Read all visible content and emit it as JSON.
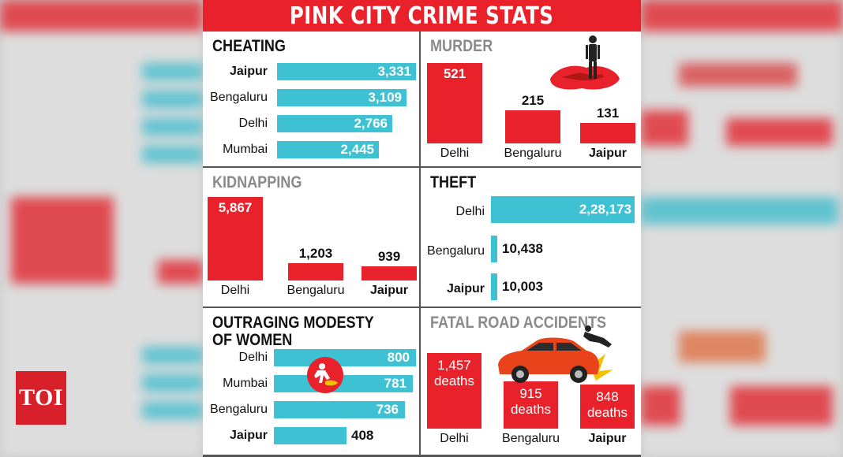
{
  "logo": {
    "text": "TOI"
  },
  "title": "PINK CITY CRIME STATS",
  "colors": {
    "red": "#e8212a",
    "cyan": "#3ec1d3"
  },
  "chart_data": [
    {
      "key": "cheating",
      "type": "bar",
      "orientation": "horizontal",
      "title": "CHEATING",
      "categories": [
        "Jaipur",
        "Bengaluru",
        "Delhi",
        "Mumbai"
      ],
      "values": [
        3331,
        3109,
        2766,
        2445
      ],
      "value_labels": [
        "3,331",
        "3,109",
        "2,766",
        "2,445"
      ],
      "highlight": "Jaipur"
    },
    {
      "key": "murder",
      "type": "bar",
      "orientation": "vertical",
      "title": "MURDER",
      "categories": [
        "Delhi",
        "Bengaluru",
        "Jaipur"
      ],
      "values": [
        521,
        215,
        131
      ],
      "value_labels": [
        "521",
        "215",
        "131"
      ],
      "highlight": "Jaipur"
    },
    {
      "key": "kidnapping",
      "type": "bar",
      "orientation": "vertical",
      "title": "KIDNAPPING",
      "categories": [
        "Delhi",
        "Bengaluru",
        "Jaipur"
      ],
      "values": [
        5867,
        1203,
        939
      ],
      "value_labels": [
        "5,867",
        "1,203",
        "939"
      ],
      "highlight": "Jaipur"
    },
    {
      "key": "theft",
      "type": "bar",
      "orientation": "horizontal",
      "title": "THEFT",
      "categories": [
        "Delhi",
        "Bengaluru",
        "Jaipur"
      ],
      "values": [
        228173,
        10438,
        10003
      ],
      "value_labels": [
        "2,28,173",
        "10,438",
        "10,003"
      ],
      "highlight": "Jaipur"
    },
    {
      "key": "modesty",
      "type": "bar",
      "orientation": "horizontal",
      "title": "OUTRAGING MODESTY OF WOMEN",
      "title_lines": [
        "OUTRAGING MODESTY",
        "OF WOMEN"
      ],
      "categories": [
        "Delhi",
        "Mumbai",
        "Bengaluru",
        "Jaipur"
      ],
      "values": [
        800,
        781,
        736,
        408
      ],
      "value_labels": [
        "800",
        "781",
        "736",
        "408"
      ],
      "highlight": "Jaipur"
    },
    {
      "key": "accidents",
      "type": "bar",
      "orientation": "vertical",
      "title": "FATAL ROAD ACCIDENTS",
      "categories": [
        "Delhi",
        "Bengaluru",
        "Jaipur"
      ],
      "values": [
        1457,
        915,
        848
      ],
      "value_labels": [
        "1,457",
        "915",
        "848"
      ],
      "unit": "deaths",
      "highlight": "Jaipur"
    }
  ],
  "icons": {
    "murder": "body-outline-icon",
    "modesty": "assault-icon",
    "accidents": "car-crash-icon"
  }
}
